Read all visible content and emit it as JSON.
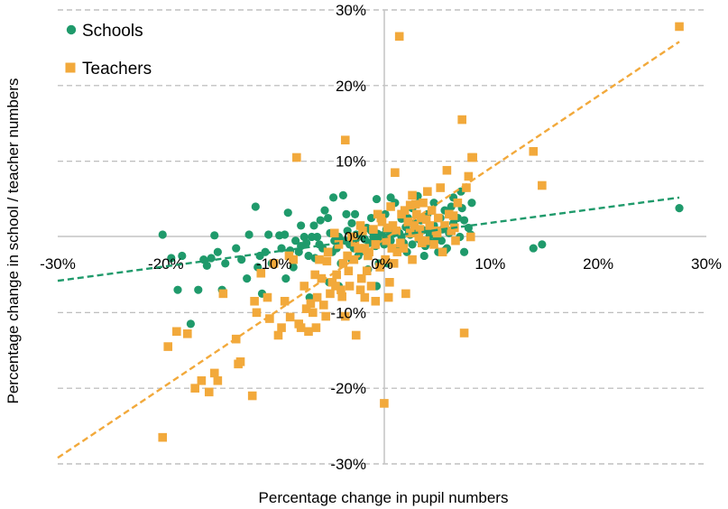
{
  "chart_data": {
    "type": "scatter",
    "title": "",
    "xlabel": "Percentage change in pupil numbers",
    "ylabel": "Percentage change in school / teacher numbers",
    "xlim": [
      -30,
      30
    ],
    "ylim": [
      -30,
      30
    ],
    "xticks": [
      "-30%",
      "-20%",
      "-10%",
      "0%",
      "10%",
      "20%",
      "30%"
    ],
    "yticks": [
      "-30%",
      "-20%",
      "-10%",
      "0%",
      "10%",
      "20%",
      "30%"
    ],
    "grid": "horizontal dashed",
    "legend_position": "top-left",
    "series": [
      {
        "name": "Schools",
        "marker": "circle",
        "color": "#1f9a6b",
        "trendline": {
          "type": "linear",
          "style": "dashed",
          "from": [
            -30,
            -5.8
          ],
          "to": [
            27.5,
            5.2
          ]
        },
        "points": [
          [
            -20.3,
            0.3
          ],
          [
            -18.9,
            -7
          ],
          [
            -18.5,
            -2.5
          ],
          [
            -17.7,
            -11.5
          ],
          [
            -17,
            -7
          ],
          [
            -16.5,
            -3
          ],
          [
            -15.5,
            0.2
          ],
          [
            -15.2,
            -2
          ],
          [
            -14.8,
            -7
          ],
          [
            -14.5,
            -3.5
          ],
          [
            -13,
            -3
          ],
          [
            -12.5,
            -5.5
          ],
          [
            -12.3,
            0.3
          ],
          [
            -11.7,
            4
          ],
          [
            -11.3,
            -2.5
          ],
          [
            -11.1,
            -7.5
          ],
          [
            -10.8,
            -2
          ],
          [
            -10.5,
            0.3
          ],
          [
            -10.2,
            -3.5
          ],
          [
            -9.5,
            0.2
          ],
          [
            -9.3,
            -1.5
          ],
          [
            -9,
            0.3
          ],
          [
            -8.7,
            3.2
          ],
          [
            -8.5,
            -1.8
          ],
          [
            -8.2,
            -4
          ],
          [
            -8,
            -0.5
          ],
          [
            -7.7,
            -2
          ],
          [
            -7.5,
            -1.2
          ],
          [
            -7.2,
            0
          ],
          [
            -7,
            -0.8
          ],
          [
            -6.8,
            -2.5
          ],
          [
            -6.5,
            0
          ],
          [
            -6.3,
            1.5
          ],
          [
            -6,
            0
          ],
          [
            -5.8,
            -1
          ],
          [
            -5.5,
            -1.5
          ],
          [
            -5.3,
            3.5
          ],
          [
            -5,
            2.5
          ],
          [
            -4.8,
            0.5
          ],
          [
            -4.6,
            -2
          ],
          [
            -4.4,
            -0.5
          ],
          [
            -4.2,
            -1.5
          ],
          [
            -4,
            0
          ],
          [
            -3.8,
            -3.5
          ],
          [
            -3.6,
            5.5
          ],
          [
            -3.4,
            -0.5
          ],
          [
            -3.2,
            0.8
          ],
          [
            -3,
            -1
          ],
          [
            -2.8,
            1.8
          ],
          [
            -2.6,
            -1.5
          ],
          [
            -2.4,
            0.3
          ],
          [
            -2.2,
            0
          ],
          [
            -2,
            -2
          ],
          [
            -1.8,
            0.5
          ],
          [
            -1.6,
            -0.3
          ],
          [
            -1.4,
            1.2
          ],
          [
            -1.2,
            -0.8
          ],
          [
            -1,
            2.5
          ],
          [
            -0.8,
            0
          ],
          [
            -0.6,
            -1.2
          ],
          [
            -0.4,
            0.4
          ],
          [
            -0.2,
            -0.5
          ],
          [
            0,
            0.2
          ],
          [
            0.2,
            -1
          ],
          [
            0.4,
            1
          ],
          [
            0.6,
            0
          ],
          [
            0.8,
            -0.5
          ],
          [
            1,
            0.4
          ],
          [
            1.2,
            4.5
          ],
          [
            1.4,
            -1.5
          ],
          [
            1.6,
            0.5
          ],
          [
            1.8,
            0
          ],
          [
            2,
            -0.8
          ],
          [
            2.2,
            1.3
          ],
          [
            2.4,
            2.5
          ],
          [
            2.6,
            0.3
          ],
          [
            2.8,
            -1
          ],
          [
            3,
            1.8
          ],
          [
            3.2,
            0.5
          ],
          [
            3.4,
            -0.3
          ],
          [
            3.6,
            2.2
          ],
          [
            3.8,
            0.9
          ],
          [
            4,
            -1.2
          ],
          [
            4.2,
            3
          ],
          [
            4.4,
            0.2
          ],
          [
            4.6,
            -0.8
          ],
          [
            4.8,
            1.5
          ],
          [
            5,
            0
          ],
          [
            5.2,
            -2
          ],
          [
            5.4,
            2.5
          ],
          [
            5.6,
            1
          ],
          [
            5.8,
            3.5
          ],
          [
            6,
            -1.5
          ],
          [
            6.2,
            0.5
          ],
          [
            6.4,
            4
          ],
          [
            6.6,
            1.8
          ],
          [
            6.8,
            -0.5
          ],
          [
            7,
            2.5
          ],
          [
            7.2,
            0
          ],
          [
            7.4,
            3.8
          ],
          [
            7.6,
            -2
          ],
          [
            7.8,
            6.5
          ],
          [
            8,
            1.2
          ],
          [
            8.2,
            0.3
          ],
          [
            -4.5,
            5.2
          ],
          [
            -2.5,
            3
          ],
          [
            -0.5,
            5
          ],
          [
            0.5,
            -3.5
          ],
          [
            2.8,
            3.8
          ],
          [
            -7.5,
            1.5
          ],
          [
            -19.5,
            -2.8
          ],
          [
            -15.8,
            -2.8
          ],
          [
            -13.5,
            -1.5
          ],
          [
            -6.2,
            -2.8
          ],
          [
            -1.3,
            -4.3
          ],
          [
            1.5,
            -1.5
          ],
          [
            4.3,
            0.8
          ],
          [
            6.6,
            5.2
          ],
          [
            7.6,
            2.2
          ],
          [
            8.3,
            4.5
          ],
          [
            -2.2,
            -2.5
          ],
          [
            -0.5,
            -6.5
          ],
          [
            0.8,
            5.2
          ],
          [
            -10,
            -3.5
          ],
          [
            -6.7,
            -8
          ],
          [
            -4,
            -6.5
          ],
          [
            -3.3,
            3
          ],
          [
            -1,
            0.8
          ],
          [
            2.5,
            0.6
          ],
          [
            3.9,
            -2.5
          ],
          [
            4.8,
            4.5
          ],
          [
            5.8,
            -1.8
          ],
          [
            6.9,
            2.5
          ],
          [
            0.3,
            3
          ],
          [
            -8.9,
            -5.5
          ],
          [
            -5.7,
            2.2
          ],
          [
            -2.8,
            -3
          ],
          [
            1.8,
            2.4
          ],
          [
            3.3,
            5.4
          ],
          [
            7.3,
            6
          ],
          [
            14,
            -1.5
          ],
          [
            14.8,
            -1
          ],
          [
            27.5,
            3.8
          ],
          [
            -0.3,
            -3.5
          ],
          [
            -4.9,
            -6
          ],
          [
            -11.5,
            -4
          ],
          [
            -16.2,
            -3.8
          ],
          [
            0.7,
            0.8
          ],
          [
            2.3,
            -2
          ],
          [
            5.5,
            -0.5
          ]
        ]
      },
      {
        "name": "Teachers",
        "marker": "square",
        "color": "#f2a93b",
        "trendline": {
          "type": "linear",
          "style": "dashed",
          "from": [
            -30,
            -29.2
          ],
          "to": [
            27.5,
            25.8
          ]
        },
        "points": [
          [
            -20.3,
            -26.5
          ],
          [
            -19.8,
            -14.5
          ],
          [
            -19,
            -12.5
          ],
          [
            -18,
            -12.8
          ],
          [
            -17.3,
            -20
          ],
          [
            -16.7,
            -19
          ],
          [
            -16,
            -20.5
          ],
          [
            -15.5,
            -18
          ],
          [
            -15.2,
            -19
          ],
          [
            -14.7,
            -7.5
          ],
          [
            -13.5,
            -13.5
          ],
          [
            -13.3,
            -16.8
          ],
          [
            -13.1,
            -16.5
          ],
          [
            -12,
            -21
          ],
          [
            -11.8,
            -8.5
          ],
          [
            -11.6,
            -10
          ],
          [
            -11.2,
            -4.8
          ],
          [
            -10.6,
            -8
          ],
          [
            -10.4,
            -10.8
          ],
          [
            -10,
            -3.5
          ],
          [
            -9.6,
            -13
          ],
          [
            -9.3,
            -12
          ],
          [
            -9,
            -8.5
          ],
          [
            -8.6,
            -2.5
          ],
          [
            -8.2,
            -3
          ],
          [
            -7.9,
            10.5
          ],
          [
            -7.7,
            -11.5
          ],
          [
            -7.5,
            -12
          ],
          [
            -7.2,
            -6.5
          ],
          [
            -7,
            -9.5
          ],
          [
            -6.8,
            -12.5
          ],
          [
            -6.6,
            -8.8
          ],
          [
            -6.4,
            -10
          ],
          [
            -6.2,
            -5
          ],
          [
            -6,
            -8
          ],
          [
            -5.8,
            -3
          ],
          [
            -5.6,
            -5.5
          ],
          [
            -5.4,
            -9
          ],
          [
            -5.2,
            -10.5
          ],
          [
            -5,
            -2
          ],
          [
            -4.8,
            -7.5
          ],
          [
            -4.6,
            -6
          ],
          [
            -4.4,
            0.5
          ],
          [
            -4.2,
            -5
          ],
          [
            -4,
            -1
          ],
          [
            -3.8,
            -7
          ],
          [
            -3.6,
            -3.5
          ],
          [
            -3.4,
            -10.5
          ],
          [
            -3.2,
            -2.5
          ],
          [
            -3,
            -6.5
          ],
          [
            -2.8,
            0
          ],
          [
            -2.6,
            -3
          ],
          [
            -2.4,
            -13
          ],
          [
            -2.2,
            -1.5
          ],
          [
            -2,
            -7
          ],
          [
            -1.8,
            0.8
          ],
          [
            -1.6,
            -8
          ],
          [
            -1.4,
            -4.5
          ],
          [
            -1.2,
            -2
          ],
          [
            -1,
            -6.5
          ],
          [
            -0.8,
            1
          ],
          [
            -0.6,
            -1
          ],
          [
            -0.4,
            3
          ],
          [
            -0.2,
            -4
          ],
          [
            0,
            2
          ],
          [
            0.2,
            -22
          ],
          [
            0.4,
            -0.5
          ],
          [
            0.6,
            -8
          ],
          [
            0.8,
            4
          ],
          [
            1,
            1.5
          ],
          [
            1.2,
            8.5
          ],
          [
            1.4,
            -2
          ],
          [
            1.6,
            26.5
          ],
          [
            1.8,
            3
          ],
          [
            2,
            -1.5
          ],
          [
            2.2,
            -7.5
          ],
          [
            2.4,
            2
          ],
          [
            2.6,
            0.5
          ],
          [
            2.8,
            5.5
          ],
          [
            3,
            1.5
          ],
          [
            3.2,
            3
          ],
          [
            3.4,
            0
          ],
          [
            3.6,
            2.5
          ],
          [
            3.8,
            4.5
          ],
          [
            4,
            -0.5
          ],
          [
            4.2,
            6
          ],
          [
            4.4,
            1.5
          ],
          [
            4.6,
            3.5
          ],
          [
            4.8,
            -1
          ],
          [
            5,
            0.8
          ],
          [
            5.2,
            2.5
          ],
          [
            5.4,
            6.5
          ],
          [
            5.6,
            -2
          ],
          [
            5.8,
            1.5
          ],
          [
            6,
            8.8
          ],
          [
            6.2,
            3
          ],
          [
            6.4,
            0.8
          ],
          [
            6.6,
            2.8
          ],
          [
            6.8,
            -0.5
          ],
          [
            7,
            4.5
          ],
          [
            7.4,
            15.5
          ],
          [
            7.6,
            -12.7
          ],
          [
            7.8,
            6.5
          ],
          [
            8,
            8
          ],
          [
            8.2,
            0
          ],
          [
            8.4,
            10.5
          ],
          [
            -3.4,
            12.8
          ],
          [
            -0.6,
            -8.5
          ],
          [
            1.1,
            -3.5
          ],
          [
            2.8,
            -3
          ],
          [
            -2,
            1.5
          ],
          [
            -1.3,
            -2.5
          ],
          [
            0.3,
            -3
          ],
          [
            1.7,
            -0.8
          ],
          [
            3.5,
            1
          ],
          [
            -4.3,
            -6.5
          ],
          [
            -3.1,
            -4.5
          ],
          [
            -1.6,
            -1.5
          ],
          [
            0.5,
            1.2
          ],
          [
            2.1,
            3.5
          ],
          [
            3.7,
            -0.8
          ],
          [
            5.1,
            0.5
          ],
          [
            6.7,
            1.2
          ],
          [
            -0.1,
            2.5
          ],
          [
            1.3,
            0.8
          ],
          [
            2.6,
            4.2
          ],
          [
            4.1,
            2.3
          ],
          [
            -5.1,
            -3.2
          ],
          [
            -2.5,
            -0.7
          ],
          [
            0.9,
            -1.5
          ],
          [
            14,
            11.3
          ],
          [
            14.8,
            6.8
          ],
          [
            27.5,
            27.8
          ],
          [
            8.3,
            10.5
          ],
          [
            -6.1,
            -12
          ],
          [
            -8.5,
            -10.6
          ],
          [
            -3.7,
            -7.9
          ],
          [
            -1.9,
            -5.5
          ],
          [
            0.7,
            -6
          ],
          [
            3.1,
            4.3
          ]
        ]
      }
    ]
  }
}
